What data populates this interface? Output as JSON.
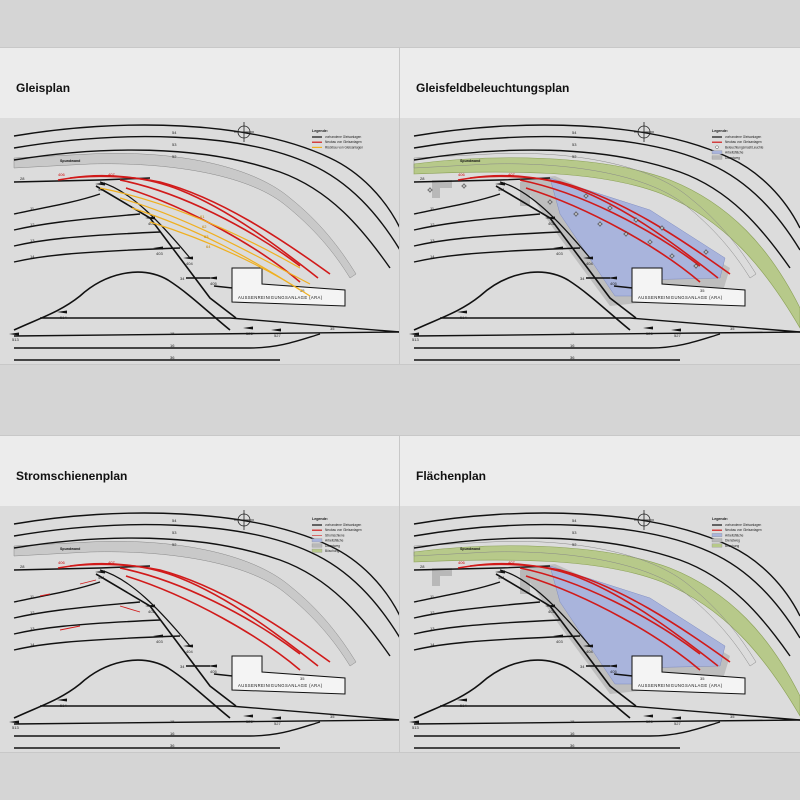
{
  "panels": [
    {
      "id": "p1",
      "title": "Gleisplan",
      "mode": "gleis",
      "legend_title": "Legende:",
      "legend": [
        {
          "label": "vorhandene Gleisanlagen",
          "color": "#111111",
          "kind": "line"
        },
        {
          "label": "Neubau von Gleisanlagen",
          "color": "#d11a1a",
          "kind": "line"
        },
        {
          "label": "Rückbau von Gleisanlagen",
          "color": "#f0b020",
          "kind": "line"
        }
      ]
    },
    {
      "id": "p2",
      "title": "Gleisfeldbeleuchtungsplan",
      "mode": "licht",
      "legend_title": "Legende:",
      "legend": [
        {
          "label": "vorhandene Gleisanlagen",
          "color": "#111111",
          "kind": "line"
        },
        {
          "label": "Neubau von Gleisanlagen",
          "color": "#d11a1a",
          "kind": "line"
        },
        {
          "label": "Beleuchtungsmast/Leuchte",
          "color": "#555555",
          "kind": "lamp"
        },
        {
          "label": "Arbeitsfläche",
          "color": "#a9b4dc",
          "kind": "box"
        },
        {
          "label": "Dienstweg",
          "color": "#b8b8b8",
          "kind": "box"
        }
      ]
    },
    {
      "id": "p3",
      "title": "Stromschienenplan",
      "mode": "strom",
      "legend_title": "Legende:",
      "legend": [
        {
          "label": "vorhandene Gleisanlagen",
          "color": "#111111",
          "kind": "line"
        },
        {
          "label": "Neubau von Gleisanlagen",
          "color": "#d11a1a",
          "kind": "line"
        },
        {
          "label": "Stromschiene",
          "color": "#d11a1a",
          "kind": "thin"
        },
        {
          "label": "Arbeitsfläche",
          "color": "#a9b4dc",
          "kind": "box"
        },
        {
          "label": "Dienstweg",
          "color": "#b8b8b8",
          "kind": "box"
        },
        {
          "label": "Böschung",
          "color": "#b7c98a",
          "kind": "box"
        }
      ]
    },
    {
      "id": "p4",
      "title": "Flächenplan",
      "mode": "flaeche",
      "legend_title": "Legende:",
      "legend": [
        {
          "label": "vorhandene Gleisanlagen",
          "color": "#111111",
          "kind": "line"
        },
        {
          "label": "Neubau von Gleisanlagen",
          "color": "#d11a1a",
          "kind": "line"
        },
        {
          "label": "Arbeitsfläche",
          "color": "#a9b4dc",
          "kind": "box"
        },
        {
          "label": "Dienstweg",
          "color": "#b8b8b8",
          "kind": "box"
        },
        {
          "label": "Böschung",
          "color": "#b7c98a",
          "kind": "box"
        }
      ]
    }
  ],
  "track_labels": {
    "t54": "54",
    "t53": "53",
    "t52": "52",
    "t28": "28",
    "t11": "11",
    "t12": "12",
    "t13": "13",
    "t14": "14",
    "t34": "34",
    "t35": "35",
    "t15": "15",
    "t16": "16",
    "t36": "36"
  },
  "switch_labels": {
    "s401": "401",
    "s402": "402",
    "s403": "403",
    "s404": "404",
    "s405": "405",
    "s406": "406",
    "s407": "407",
    "s514": "514",
    "s513": "513",
    "s526": "526",
    "s527": "527"
  },
  "new_track_labels": [
    "61",
    "62",
    "63",
    "64"
  ],
  "wall_label": "Spundwand",
  "ara_label": "AUSSENREINIGUNGSANLAGE (ARA)",
  "colors": {
    "existing": "#111111",
    "new": "#d11a1a",
    "removed": "#f0b020",
    "work_area": "#a9b4dc",
    "service_path": "#b8b8b8",
    "embankment": "#b7c98a",
    "wall": "#c9c9c9"
  }
}
